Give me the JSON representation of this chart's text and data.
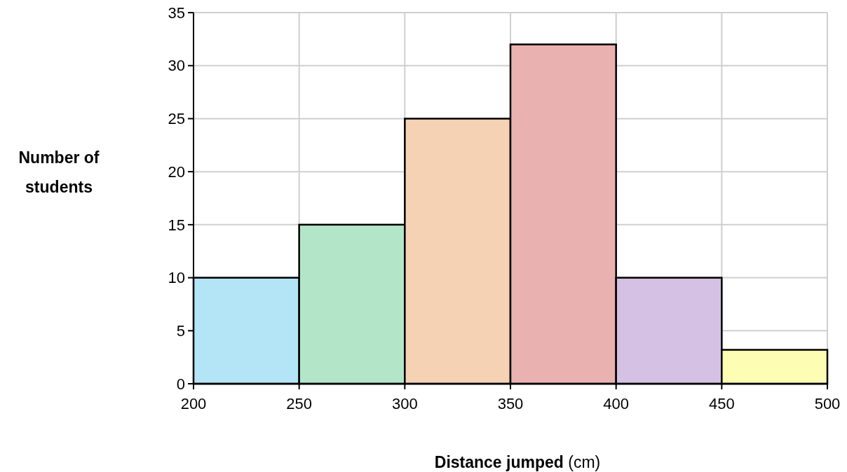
{
  "chart_data": {
    "type": "histogram",
    "xlabel": "Distance jumped (cm)",
    "ylabel": "Number of students",
    "bins": [
      200,
      250,
      300,
      350,
      400,
      450,
      500
    ],
    "values": [
      10,
      15,
      25,
      32,
      10,
      3.2
    ],
    "colors": [
      "#b3e5f7",
      "#b3e6c9",
      "#f5d2b3",
      "#eab1b1",
      "#d4c1e3",
      "#fdfdb3"
    ],
    "xlim": [
      200,
      500
    ],
    "xticks": [
      200,
      250,
      300,
      350,
      400,
      450,
      500
    ],
    "ylim": [
      0,
      35
    ],
    "yticks": [
      0,
      5,
      10,
      15,
      20,
      25,
      30,
      35
    ],
    "grid": true
  }
}
